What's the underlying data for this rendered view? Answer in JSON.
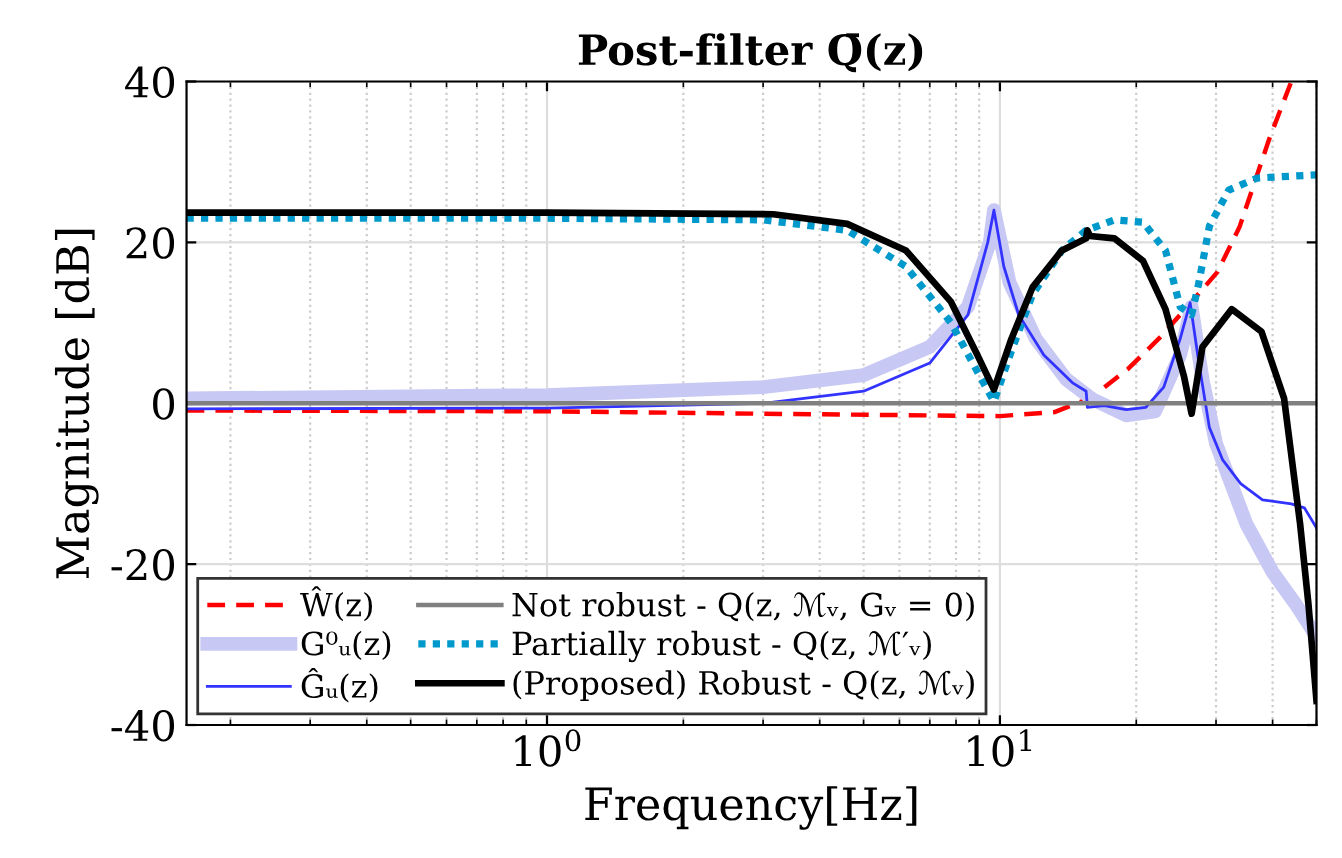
{
  "chart_data": {
    "type": "line",
    "title": "Post-filter Q̄(z)",
    "xlabel": "Frequency[Hz]",
    "ylabel": "Magnitude [dB]",
    "log": "x",
    "xlim": [
      0.16,
      50
    ],
    "ylim": [
      -40,
      40
    ],
    "xticks": [
      {
        "value": 1,
        "label": "10$^{0}$"
      },
      {
        "value": 10,
        "label": "10$^{1}$"
      }
    ],
    "yticks": [
      {
        "value": -40,
        "label": "-40"
      },
      {
        "value": -20,
        "label": "-20"
      },
      0,
      20,
      40
    ],
    "grid": true,
    "legend": "bottom left",
    "series": [
      {
        "name": "Ŵ(z)",
        "color": "#ff0000",
        "line_style": "dashed",
        "x": [
          0.16,
          1,
          3,
          10,
          13.2,
          15.9,
          19.2,
          22.4,
          26.5,
          30.2,
          33.8,
          39.4,
          44
        ],
        "values": [
          -0.9,
          -1.0,
          -1.3,
          -1.6,
          -1.1,
          0.7,
          4.3,
          8,
          12.6,
          16.3,
          21.9,
          33,
          40
        ]
      },
      {
        "name": "G⁰ᵤ(z)",
        "color": "#c8c8f5",
        "line_style": "solid",
        "x": [
          0.16,
          1,
          3,
          5,
          7,
          8.5,
          9.5,
          9.7,
          10.5,
          12,
          14,
          16,
          19,
          22,
          25,
          26.5,
          28,
          30,
          35,
          40,
          45,
          50
        ],
        "values": [
          0.6,
          1,
          2,
          3.5,
          7,
          12,
          20,
          24,
          15,
          8,
          3,
          0.5,
          -1.5,
          -1,
          6,
          12,
          3,
          -5,
          -15,
          -21,
          -25,
          -29
        ]
      },
      {
        "name": "Ĝᵤ(z)",
        "color": "#3333ff",
        "line_style": "solid",
        "x": [
          0.16,
          1,
          3,
          5,
          7,
          8.5,
          9.4,
          9.7,
          10.2,
          11,
          12.5,
          14.5,
          15.5,
          15.6,
          17,
          19,
          21,
          23,
          25,
          26.3,
          27.5,
          29,
          31,
          34,
          38,
          44,
          47,
          50
        ],
        "values": [
          -0.7,
          -0.6,
          0,
          1.5,
          5,
          11,
          20,
          24,
          17,
          11,
          6,
          2.5,
          1.5,
          -0.5,
          -0.3,
          -0.8,
          -0.5,
          2,
          8,
          12.5,
          5,
          -3,
          -7,
          -10,
          -12,
          -12.5,
          -13,
          -15.5
        ]
      },
      {
        "name": "Not robust - Q(z, ℳᵥ, Gᵥ = 0)",
        "color": "#808080",
        "line_style": "solid",
        "x": [
          0.16,
          50
        ],
        "values": [
          0,
          0
        ]
      },
      {
        "name": "Partially robust - Q(z, ℳ′ᵥ)",
        "color": "#0099cc",
        "line_style": "dotted",
        "x": [
          0.16,
          1,
          3,
          4.6,
          6.2,
          7.8,
          8.9,
          9.7,
          10.6,
          11.8,
          13.7,
          15.5,
          17.9,
          20.7,
          23.2,
          25,
          26.5,
          27.5,
          29,
          32,
          37,
          50
        ],
        "values": [
          23,
          23,
          22.8,
          21.5,
          17,
          10,
          4,
          0.2,
          6.5,
          13.5,
          19,
          21.5,
          22.8,
          22.5,
          19,
          12,
          11,
          15,
          22,
          26.5,
          28,
          28.4
        ]
      },
      {
        "name": "(Proposed) Robust - Q(z, ℳᵥ)",
        "color": "#000000",
        "line_style": "solid",
        "x": [
          0.16,
          1,
          3.16,
          4.6,
          6.2,
          7.8,
          8.9,
          9.7,
          10.6,
          11.8,
          13.7,
          15.5,
          15.6,
          15.8,
          17.9,
          20.7,
          23.2,
          25.5,
          26.5,
          28,
          32.5,
          37.8,
          42.4,
          46,
          48,
          50
        ],
        "values": [
          23.7,
          23.7,
          23.5,
          22.3,
          19,
          12.6,
          6.1,
          1.7,
          8,
          14.4,
          19,
          20.5,
          21.5,
          20.8,
          20.5,
          17.7,
          11.7,
          3.3,
          -1.3,
          7,
          11.7,
          8.9,
          0.6,
          -15,
          -25,
          -37
        ]
      }
    ]
  }
}
